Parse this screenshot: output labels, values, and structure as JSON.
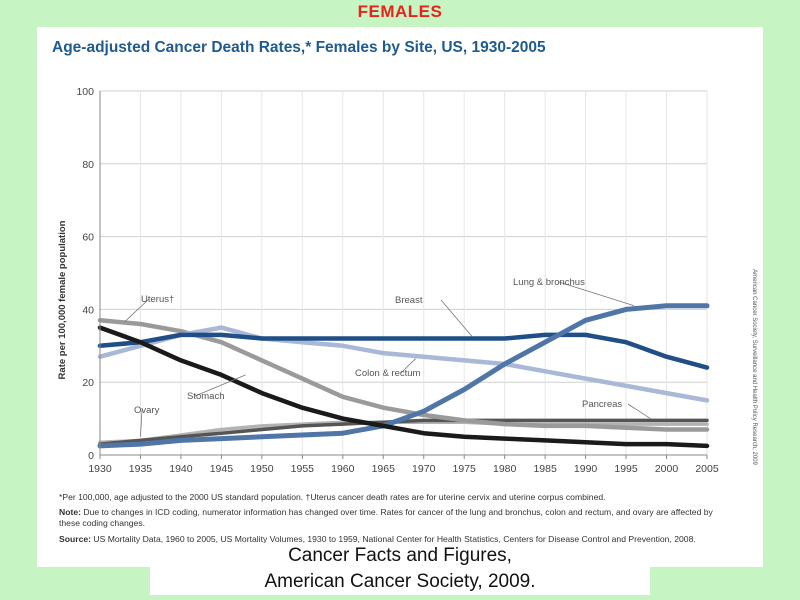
{
  "slide": {
    "title": "FEMALES",
    "caption_line1": "Cancer Facts and Figures,",
    "caption_line2": "American Cancer Society, 2009."
  },
  "colors": {
    "background": "#c6f5c3",
    "slide_title": "#e8231e",
    "chart_title": "#1f5b8e",
    "breast": "#1f4f86",
    "lung_bronchus": "#4f76a6",
    "colon_rectum": "#a9b8d6",
    "uterus": "#9a9a9a",
    "stomach": "#1a1a1a",
    "ovary": "#b3b3b3",
    "pancreas": "#555555"
  },
  "chart_data": {
    "type": "line",
    "title": "Age-adjusted Cancer Death Rates,* Females by Site, US, 1930-2005",
    "xlabel": "",
    "ylabel": "Rate per 100,000 female population",
    "xlim": [
      1930,
      2005
    ],
    "ylim": [
      0,
      100
    ],
    "x_ticks": [
      "1930",
      "1935",
      "1940",
      "1945",
      "1950",
      "1955",
      "1960",
      "1965",
      "1970",
      "1975",
      "1980",
      "1985",
      "1990",
      "1995",
      "2000",
      "2005"
    ],
    "y_ticks": [
      "0",
      "20",
      "40",
      "60",
      "80",
      "100"
    ],
    "grid": true,
    "legend": "inline labels",
    "series": [
      {
        "name": "Breast",
        "color_key": "breast",
        "x": [
          1930,
          1935,
          1940,
          1945,
          1950,
          1955,
          1960,
          1965,
          1970,
          1975,
          1980,
          1985,
          1990,
          1995,
          2000,
          2005
        ],
        "y": [
          30,
          31,
          33,
          33,
          32,
          32,
          32,
          32,
          32,
          32,
          32,
          33,
          33,
          31,
          27,
          24
        ]
      },
      {
        "name": "Lung & bronchus",
        "color_key": "lung_bronchus",
        "x": [
          1930,
          1935,
          1940,
          1945,
          1950,
          1955,
          1960,
          1965,
          1970,
          1975,
          1980,
          1985,
          1990,
          1995,
          2000,
          2005
        ],
        "y": [
          2.5,
          3,
          4,
          4.5,
          5,
          5.5,
          6,
          8,
          12,
          18,
          25,
          31,
          37,
          40,
          41,
          41
        ]
      },
      {
        "name": "Colon & rectum",
        "color_key": "colon_rectum",
        "x": [
          1930,
          1935,
          1940,
          1945,
          1950,
          1955,
          1960,
          1965,
          1970,
          1975,
          1980,
          1985,
          1990,
          1995,
          2000,
          2005
        ],
        "y": [
          27,
          30,
          33,
          35,
          32,
          31,
          30,
          28,
          27,
          26,
          25,
          23,
          21,
          19,
          17,
          15
        ]
      },
      {
        "name": "Uterus†",
        "color_key": "uterus",
        "x": [
          1930,
          1935,
          1940,
          1945,
          1950,
          1955,
          1960,
          1965,
          1970,
          1975,
          1980,
          1985,
          1990,
          1995,
          2000,
          2005
        ],
        "y": [
          37,
          36,
          34,
          31,
          26,
          21,
          16,
          13,
          11,
          9.5,
          8.5,
          8,
          8,
          7.5,
          7,
          7
        ]
      },
      {
        "name": "Stomach",
        "color_key": "stomach",
        "x": [
          1930,
          1935,
          1940,
          1945,
          1950,
          1955,
          1960,
          1965,
          1970,
          1975,
          1980,
          1985,
          1990,
          1995,
          2000,
          2005
        ],
        "y": [
          35,
          31,
          26,
          22,
          17,
          13,
          10,
          8,
          6,
          5,
          4.5,
          4,
          3.5,
          3,
          3,
          2.5
        ]
      },
      {
        "name": "Ovary",
        "color_key": "ovary",
        "x": [
          1930,
          1935,
          1940,
          1945,
          1950,
          1955,
          1960,
          1965,
          1970,
          1975,
          1980,
          1985,
          1990,
          1995,
          2000,
          2005
        ],
        "y": [
          3.5,
          4,
          5.5,
          7,
          8,
          8.5,
          9,
          9,
          9,
          9,
          8.5,
          8.5,
          8.5,
          8.5,
          8.5,
          8.5
        ]
      },
      {
        "name": "Pancreas",
        "color_key": "pancreas",
        "x": [
          1930,
          1935,
          1940,
          1945,
          1950,
          1955,
          1960,
          1965,
          1970,
          1975,
          1980,
          1985,
          1990,
          1995,
          2000,
          2005
        ],
        "y": [
          3,
          4,
          5,
          6,
          7,
          8,
          8.5,
          9,
          9.5,
          9.5,
          9.5,
          9.5,
          9.5,
          9.5,
          9.5,
          9.5
        ]
      }
    ]
  },
  "notes": {
    "note1": "*Per 100,000, age adjusted to the 2000 US standard population. †Uterus cancer death rates are for uterine cervix and uterine corpus combined.",
    "note2_label": "Note:",
    "note2": " Due to changes in ICD coding, numerator information has changed over time. Rates for cancer of the lung and bronchus, colon and rectum, and ovary are affected by these coding changes.",
    "note3_label": "Source:",
    "note3": " US Mortality Data, 1960 to 2005, US Mortality Volumes, 1930 to 1959, National Center for Health Statistics, Centers for Disease Control and Prevention, 2008.",
    "side_credit": "American Cancer Society, Surveillance and Health Policy Research, 2009"
  }
}
